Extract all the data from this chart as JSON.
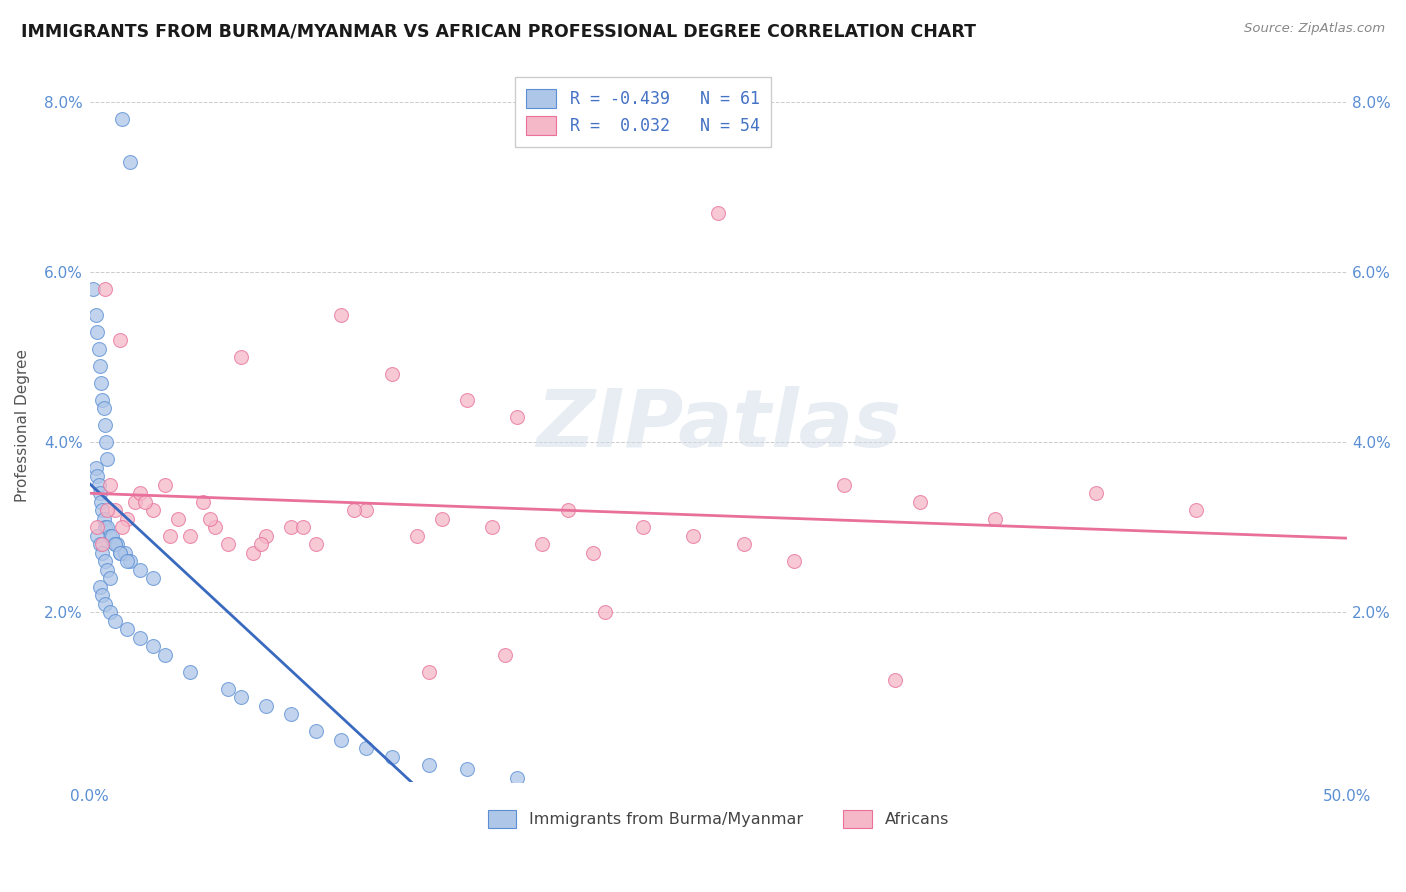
{
  "title": "IMMIGRANTS FROM BURMA/MYANMAR VS AFRICAN PROFESSIONAL DEGREE CORRELATION CHART",
  "source": "Source: ZipAtlas.com",
  "ylabel": "Professional Degree",
  "xlim": [
    0.0,
    50.0
  ],
  "ylim": [
    0.0,
    8.4
  ],
  "legend_label1": "Immigrants from Burma/Myanmar",
  "legend_label2": "Africans",
  "R1": "-0.439",
  "N1": "61",
  "R2": "0.032",
  "N2": "54",
  "color_blue": "#aec6e8",
  "color_pink": "#f5b8c8",
  "edge_blue": "#5b8fd4",
  "edge_pink": "#e8709a",
  "line_blue": "#3a6abf",
  "line_pink": "#e8709a",
  "scatter1_x": [
    1.3,
    1.6,
    0.15,
    0.25,
    0.3,
    0.35,
    0.4,
    0.45,
    0.5,
    0.55,
    0.6,
    0.65,
    0.7,
    0.25,
    0.3,
    0.35,
    0.4,
    0.45,
    0.5,
    0.55,
    0.6,
    0.7,
    0.8,
    0.9,
    1.0,
    1.1,
    1.2,
    1.4,
    1.6,
    0.3,
    0.4,
    0.5,
    0.6,
    0.7,
    0.8,
    1.0,
    1.2,
    1.5,
    2.0,
    2.5,
    0.4,
    0.5,
    0.6,
    0.8,
    1.0,
    1.5,
    2.0,
    2.5,
    3.0,
    4.0,
    5.5,
    6.0,
    7.0,
    8.0,
    9.0,
    10.0,
    11.0,
    12.0,
    13.5,
    15.0,
    17.0
  ],
  "scatter1_y": [
    7.8,
    7.3,
    5.8,
    5.5,
    5.3,
    5.1,
    4.9,
    4.7,
    4.5,
    4.4,
    4.2,
    4.0,
    3.8,
    3.7,
    3.6,
    3.5,
    3.4,
    3.3,
    3.2,
    3.1,
    3.0,
    3.0,
    2.9,
    2.9,
    2.8,
    2.8,
    2.7,
    2.7,
    2.6,
    2.9,
    2.8,
    2.7,
    2.6,
    2.5,
    2.4,
    2.8,
    2.7,
    2.6,
    2.5,
    2.4,
    2.3,
    2.2,
    2.1,
    2.0,
    1.9,
    1.8,
    1.7,
    1.6,
    1.5,
    1.3,
    1.1,
    1.0,
    0.9,
    0.8,
    0.6,
    0.5,
    0.4,
    0.3,
    0.2,
    0.15,
    0.05
  ],
  "scatter2_x": [
    0.3,
    0.5,
    0.6,
    0.8,
    1.0,
    1.2,
    1.5,
    1.8,
    2.0,
    2.5,
    3.0,
    3.5,
    4.0,
    4.5,
    5.0,
    5.5,
    6.0,
    6.5,
    7.0,
    8.0,
    9.0,
    10.0,
    11.0,
    12.0,
    13.0,
    14.0,
    15.0,
    16.0,
    17.0,
    18.0,
    19.0,
    20.0,
    22.0,
    24.0,
    26.0,
    28.0,
    30.0,
    33.0,
    36.0,
    40.0,
    0.7,
    1.3,
    2.2,
    3.2,
    4.8,
    6.8,
    8.5,
    10.5,
    13.5,
    16.5,
    20.5,
    25.0,
    32.0,
    44.0
  ],
  "scatter2_y": [
    3.0,
    2.8,
    5.8,
    3.5,
    3.2,
    5.2,
    3.1,
    3.3,
    3.4,
    3.2,
    3.5,
    3.1,
    2.9,
    3.3,
    3.0,
    2.8,
    5.0,
    2.7,
    2.9,
    3.0,
    2.8,
    5.5,
    3.2,
    4.8,
    2.9,
    3.1,
    4.5,
    3.0,
    4.3,
    2.8,
    3.2,
    2.7,
    3.0,
    2.9,
    2.8,
    2.6,
    3.5,
    3.3,
    3.1,
    3.4,
    3.2,
    3.0,
    3.3,
    2.9,
    3.1,
    2.8,
    3.0,
    3.2,
    1.3,
    1.5,
    2.0,
    6.7,
    1.2,
    3.2
  ],
  "watermark": "ZIPatlas",
  "background_color": "#ffffff",
  "grid_color": "#cccccc"
}
